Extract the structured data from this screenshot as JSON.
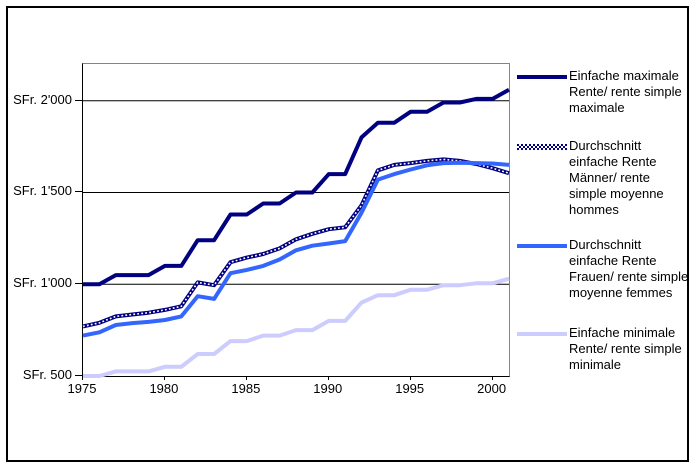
{
  "chart_data": {
    "type": "line",
    "currency": "SFr.",
    "grid": "horizontal",
    "legend_position": "right",
    "xlim": [
      1975,
      2001
    ],
    "ylim": [
      500,
      2200
    ],
    "gridlines": [
      1000,
      1500,
      2000
    ],
    "years": [
      1975,
      1976,
      1977,
      1978,
      1979,
      1980,
      1981,
      1982,
      1983,
      1984,
      1985,
      1986,
      1987,
      1988,
      1989,
      1990,
      1991,
      1992,
      1993,
      1994,
      1995,
      1996,
      1997,
      1998,
      1999,
      2000,
      2001
    ],
    "series": [
      {
        "id": "einfache-maximale-rente",
        "label": "Einfache maximale\nRente/ rente simple\nmaximale",
        "color": "#000080",
        "style": "solid",
        "values": [
          1000,
          1000,
          1050,
          1050,
          1050,
          1100,
          1100,
          1240,
          1240,
          1380,
          1380,
          1440,
          1440,
          1500,
          1500,
          1600,
          1600,
          1800,
          1880,
          1880,
          1940,
          1940,
          1990,
          1990,
          2010,
          2010,
          2060
        ]
      },
      {
        "id": "durchschnitt-einfache-rente-maenner",
        "label": "Durchschnitt\neinfache Rente\nMänner/ rente\nsimple moyenne\nhommes",
        "color": "#000080",
        "style": "dotted-white",
        "values": [
          770,
          790,
          825,
          835,
          845,
          860,
          880,
          1010,
          995,
          1120,
          1145,
          1165,
          1195,
          1245,
          1275,
          1300,
          1310,
          1430,
          1620,
          1650,
          1660,
          1672,
          1680,
          1672,
          1655,
          1632,
          1605
        ]
      },
      {
        "id": "durchschnitt-einfache-rente-frauen",
        "label": "Durchschnitt\neinfache Rente\nFrauen/ rente simple\nmoyenne femmes",
        "color": "#3366FF",
        "style": "solid",
        "values": [
          720,
          738,
          778,
          788,
          795,
          805,
          825,
          935,
          920,
          1060,
          1078,
          1100,
          1135,
          1185,
          1210,
          1222,
          1235,
          1390,
          1570,
          1600,
          1625,
          1648,
          1660,
          1662,
          1660,
          1658,
          1650
        ]
      },
      {
        "id": "einfache-minimale-rente",
        "label": "Einfache minimale\nRente/ rente simple\nminimale",
        "color": "#CCCCFF",
        "style": "solid",
        "values": [
          500,
          500,
          525,
          525,
          525,
          550,
          550,
          620,
          620,
          690,
          690,
          720,
          720,
          750,
          750,
          800,
          800,
          900,
          940,
          940,
          970,
          970,
          995,
          995,
          1005,
          1005,
          1030
        ]
      }
    ],
    "yticks": [
      {
        "value": 2000,
        "label": "SFr. 2'000"
      },
      {
        "value": 1500,
        "label": "SFr. 1'500"
      },
      {
        "value": 1000,
        "label": "SFr. 1'000"
      },
      {
        "value": 500,
        "label": "SFr. 500"
      }
    ],
    "xticks": [
      {
        "value": 1975,
        "label": "1975"
      },
      {
        "value": 1980,
        "label": "1980"
      },
      {
        "value": 1985,
        "label": "1985"
      },
      {
        "value": 1990,
        "label": "1990"
      },
      {
        "value": 1995,
        "label": "1995"
      },
      {
        "value": 2000,
        "label": "2000"
      }
    ]
  }
}
